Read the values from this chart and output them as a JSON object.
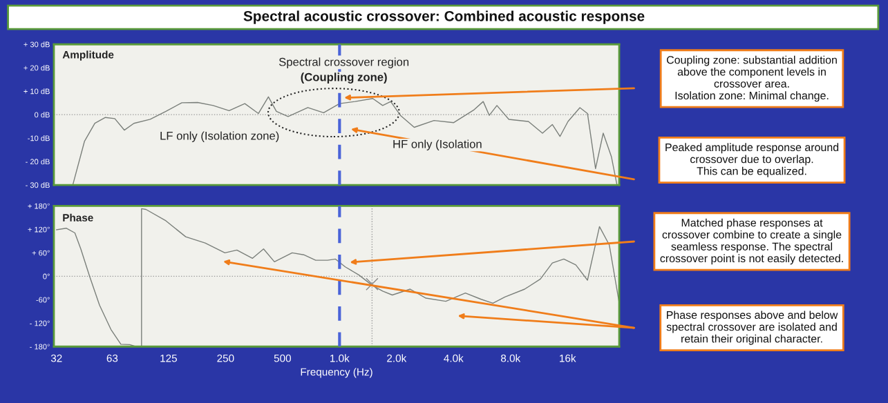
{
  "chart_data": [
    {
      "type": "line",
      "title": "Spectral acoustic crossover: Combined acoustic response",
      "log": "x",
      "xlim": [
        31,
        30000
      ],
      "ylim": [
        -30,
        30
      ],
      "tick_labels": "y",
      "yticks": [
        {
          "value": 30,
          "label": "+ 30 dB"
        },
        {
          "value": 20,
          "label": "+ 20 dB"
        },
        {
          "value": 10,
          "label": "+ 10 dB"
        },
        {
          "value": 0,
          "label": "0 dB"
        },
        {
          "value": -10,
          "label": "-10 dB"
        },
        {
          "value": -20,
          "label": "- 20 dB"
        },
        {
          "value": -30,
          "label": "- 30 dB"
        }
      ],
      "series": [
        {
          "color": "#7a7f7a",
          "x": [
            39,
            45,
            51,
            58,
            65,
            73,
            82,
            100,
            121,
            147,
            178,
            215,
            261,
            316,
            373,
            421,
            464,
            535,
            680,
            824,
            1000,
            1208,
            1498,
            1690,
            1863,
            2097,
            2480,
            3155,
            4010,
            5100,
            5740,
            6180,
            6780,
            7840,
            9940,
            11800,
            13300,
            14600,
            16100,
            18600,
            20400,
            22500,
            24700,
            27300,
            29200
          ],
          "values": [
            -30,
            -11.3,
            -3.7,
            -1.2,
            -1.7,
            -6.6,
            -3.7,
            -2.0,
            1.4,
            5.1,
            5.2,
            3.9,
            1.7,
            4.7,
            0.5,
            7.6,
            1.4,
            -0.8,
            3.0,
            0.8,
            4.7,
            5.6,
            6.9,
            3.9,
            5.6,
            -0.3,
            -5.4,
            -2.5,
            -3.4,
            1.9,
            5.6,
            -0.3,
            3.9,
            -2.0,
            -2.9,
            -7.9,
            -4.2,
            -9.3,
            -2.9,
            3.0,
            0.5,
            -23,
            -7.9,
            -18,
            -30
          ]
        }
      ],
      "ref_lines": [
        {
          "axis": "y",
          "value": 0,
          "color": "#999999",
          "line_style": "dotted"
        },
        {
          "axis": "x",
          "value": 1000,
          "color": "#4a63d8",
          "line_style": "dashed"
        }
      ],
      "annotations": [
        "Amplitude",
        "Spectral crossover region",
        "(Coupling zone)",
        "LF only (Isolation zone)",
        "HF only (Isolation",
        "Coupling zone: substantial addition\nabove the component levels in\ncrossover area.\nIsolation zone: Minimal change.",
        "Peaked amplitude response around\ncrossover due to overlap.\nThis can be equalized."
      ]
    },
    {
      "type": "line",
      "log": "x",
      "xlabel": "Frequency (Hz)",
      "xlim": [
        31,
        30000
      ],
      "ylim": [
        -180,
        180
      ],
      "xticks": [
        32,
        63,
        125,
        250,
        500,
        {
          "value": 1000,
          "label": "1.0k"
        },
        {
          "value": 2000,
          "label": "2.0k"
        },
        {
          "value": 4000,
          "label": "4.0k"
        },
        {
          "value": 8000,
          "label": "8.0k"
        },
        {
          "value": 16000,
          "label": "16k"
        }
      ],
      "yticks": [
        {
          "value": 180,
          "label": "+ 180°"
        },
        {
          "value": 120,
          "label": "+ 120°"
        },
        {
          "value": 60,
          "label": "+ 60°"
        },
        {
          "value": 0,
          "label": "0°"
        },
        {
          "value": -60,
          "label": "-60°"
        },
        {
          "value": -120,
          "label": "- 120°"
        },
        {
          "value": -180,
          "label": "- 180°"
        }
      ],
      "series": [
        {
          "color": "#7a7f7a",
          "x": [
            32,
            36,
            40,
            43,
            48,
            54,
            62,
            70,
            78,
            84,
            90,
            90,
            95,
            121,
            154,
            195,
            248,
            287,
            347,
            397,
            453,
            562,
            647,
            748,
            864,
            952,
            1072,
            1268,
            1485,
            1690,
            1900,
            2360,
            2860,
            3640,
            4620,
            5600,
            6460,
            7470,
            9500,
            11500,
            13300,
            15300,
            17700,
            20400,
            23600,
            26600,
            29900
          ],
          "values": [
            119,
            123,
            111,
            70,
            -2,
            -74,
            -136,
            -174,
            -175,
            -180,
            -180,
            173,
            171,
            142,
            101,
            85,
            60,
            67,
            46,
            70,
            37,
            60,
            55,
            41,
            41,
            44,
            24,
            3,
            -23,
            -38,
            -48,
            -33,
            -56,
            -64,
            -43,
            -59,
            -69,
            -53,
            -33,
            -7,
            34,
            44,
            29,
            -10,
            127,
            80,
            -64
          ]
        },
        {
          "type": "scatter",
          "marker": "cross",
          "color": "#888888",
          "x": [
            1485
          ],
          "values": [
            -20
          ]
        }
      ],
      "ref_lines": [
        {
          "axis": "y",
          "value": 0,
          "color": "#999999",
          "line_style": "dotted"
        },
        {
          "axis": "x",
          "value": 1485,
          "color": "#999999",
          "line_style": "dotted"
        },
        {
          "axis": "x",
          "value": 1000,
          "color": "#4a63d8",
          "line_style": "dashed"
        }
      ],
      "annotations": [
        "Phase",
        "Matched phase responses at\ncrossover combine to create a single\nseamless response. The spectral\ncrossover point is not easily detected.",
        "Phase responses above and below\nspectral crossover are isolated and\nretain their original character."
      ]
    }
  ]
}
